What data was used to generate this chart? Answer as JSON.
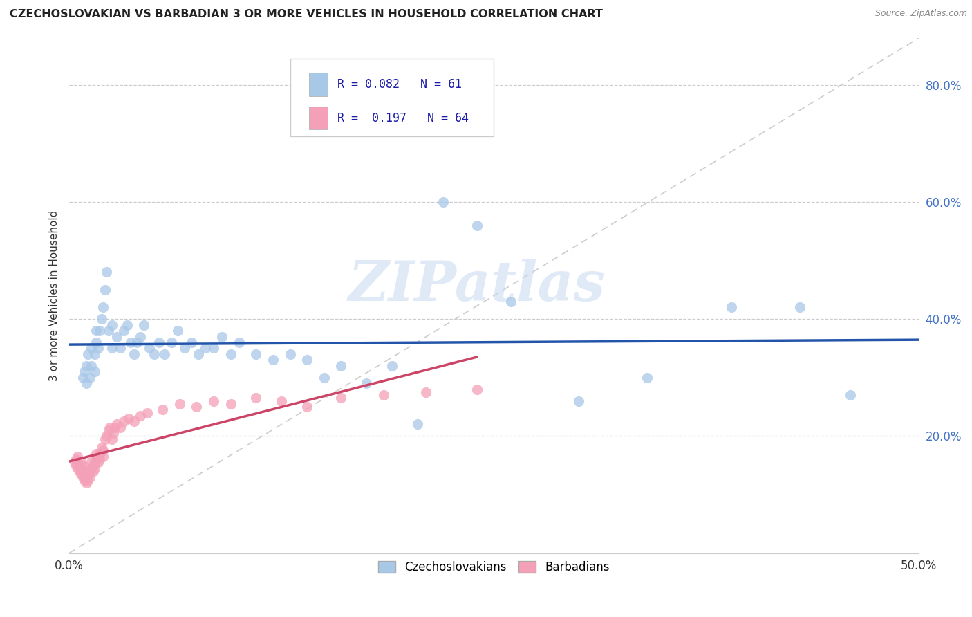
{
  "title": "CZECHOSLOVAKIAN VS BARBADIAN 3 OR MORE VEHICLES IN HOUSEHOLD CORRELATION CHART",
  "source": "Source: ZipAtlas.com",
  "ylabel": "3 or more Vehicles in Household",
  "xlim": [
    0.0,
    0.5
  ],
  "ylim": [
    0.0,
    0.88
  ],
  "xtick_values": [
    0.0,
    0.5
  ],
  "xtick_labels": [
    "0.0%",
    "50.0%"
  ],
  "ytick_values": [
    0.2,
    0.4,
    0.6,
    0.8
  ],
  "ytick_labels": [
    "20.0%",
    "40.0%",
    "60.0%",
    "80.0%"
  ],
  "R_czech": 0.082,
  "N_czech": 61,
  "R_barbadian": 0.197,
  "N_barbadian": 64,
  "legend_labels": [
    "Czechoslovakians",
    "Barbadians"
  ],
  "color_czech": "#a8c8e8",
  "color_barbadian": "#f4a0b8",
  "color_czech_line": "#2255aa",
  "color_barbadian_line": "#cc4466",
  "color_diag": "#cccccc",
  "watermark": "ZIPatlas",
  "czech_scatter_x": [
    0.008,
    0.009,
    0.01,
    0.01,
    0.011,
    0.012,
    0.013,
    0.013,
    0.015,
    0.015,
    0.016,
    0.016,
    0.017,
    0.018,
    0.019,
    0.02,
    0.021,
    0.022,
    0.023,
    0.025,
    0.025,
    0.028,
    0.03,
    0.032,
    0.034,
    0.036,
    0.038,
    0.04,
    0.042,
    0.044,
    0.047,
    0.05,
    0.053,
    0.056,
    0.06,
    0.064,
    0.068,
    0.072,
    0.076,
    0.08,
    0.085,
    0.09,
    0.095,
    0.1,
    0.11,
    0.12,
    0.13,
    0.14,
    0.15,
    0.16,
    0.175,
    0.19,
    0.205,
    0.22,
    0.24,
    0.26,
    0.3,
    0.34,
    0.39,
    0.43,
    0.46
  ],
  "czech_scatter_y": [
    0.3,
    0.31,
    0.29,
    0.32,
    0.34,
    0.3,
    0.32,
    0.35,
    0.31,
    0.34,
    0.36,
    0.38,
    0.35,
    0.38,
    0.4,
    0.42,
    0.45,
    0.48,
    0.38,
    0.35,
    0.39,
    0.37,
    0.35,
    0.38,
    0.39,
    0.36,
    0.34,
    0.36,
    0.37,
    0.39,
    0.35,
    0.34,
    0.36,
    0.34,
    0.36,
    0.38,
    0.35,
    0.36,
    0.34,
    0.35,
    0.35,
    0.37,
    0.34,
    0.36,
    0.34,
    0.33,
    0.34,
    0.33,
    0.3,
    0.32,
    0.29,
    0.32,
    0.22,
    0.6,
    0.56,
    0.43,
    0.26,
    0.3,
    0.42,
    0.42,
    0.27
  ],
  "barbadian_scatter_x": [
    0.003,
    0.004,
    0.004,
    0.005,
    0.005,
    0.005,
    0.006,
    0.006,
    0.007,
    0.007,
    0.007,
    0.008,
    0.008,
    0.008,
    0.009,
    0.009,
    0.01,
    0.01,
    0.01,
    0.011,
    0.011,
    0.012,
    0.012,
    0.013,
    0.013,
    0.014,
    0.014,
    0.015,
    0.015,
    0.016,
    0.016,
    0.017,
    0.017,
    0.018,
    0.018,
    0.019,
    0.02,
    0.02,
    0.021,
    0.022,
    0.023,
    0.024,
    0.025,
    0.026,
    0.027,
    0.028,
    0.03,
    0.032,
    0.035,
    0.038,
    0.042,
    0.046,
    0.055,
    0.065,
    0.075,
    0.085,
    0.095,
    0.11,
    0.125,
    0.14,
    0.16,
    0.185,
    0.21,
    0.24
  ],
  "barbadian_scatter_y": [
    0.155,
    0.16,
    0.15,
    0.145,
    0.155,
    0.165,
    0.14,
    0.15,
    0.135,
    0.145,
    0.155,
    0.13,
    0.14,
    0.15,
    0.125,
    0.135,
    0.12,
    0.13,
    0.14,
    0.125,
    0.135,
    0.13,
    0.14,
    0.145,
    0.155,
    0.14,
    0.15,
    0.145,
    0.155,
    0.16,
    0.17,
    0.155,
    0.165,
    0.16,
    0.17,
    0.18,
    0.165,
    0.175,
    0.195,
    0.2,
    0.21,
    0.215,
    0.195,
    0.205,
    0.215,
    0.22,
    0.215,
    0.225,
    0.23,
    0.225,
    0.235,
    0.24,
    0.245,
    0.255,
    0.25,
    0.26,
    0.255,
    0.265,
    0.26,
    0.25,
    0.265,
    0.27,
    0.275,
    0.28
  ]
}
